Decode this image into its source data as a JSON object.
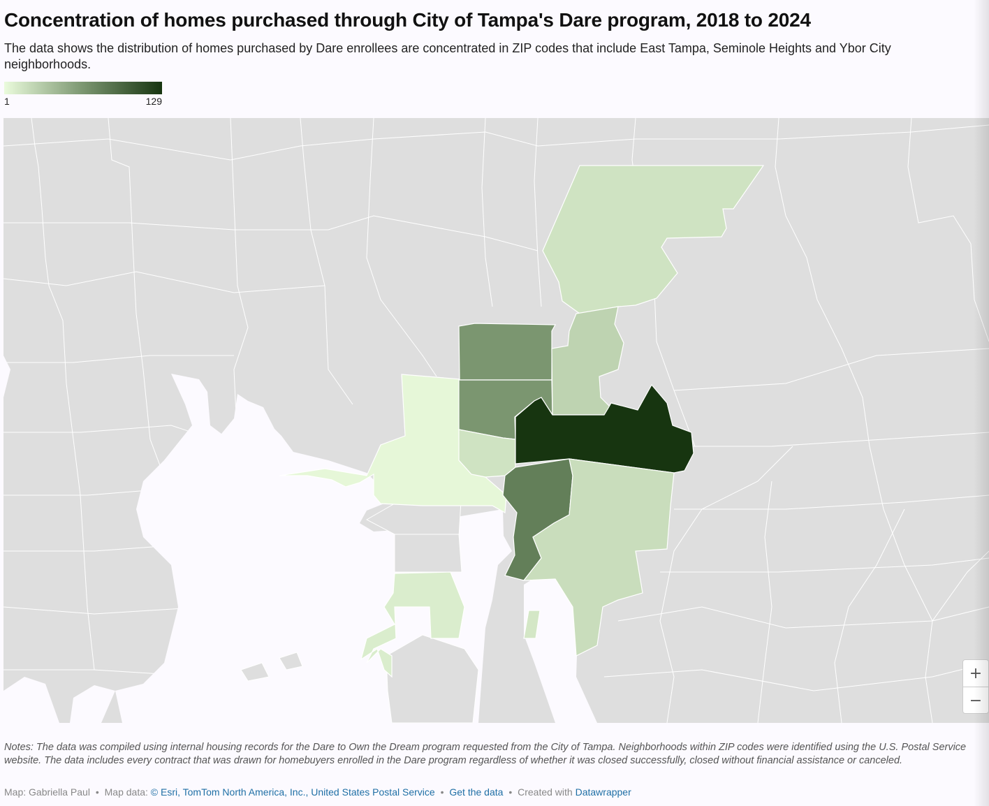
{
  "title": "Concentration of homes purchased through City of Tampa's Dare program, 2018 to 2024",
  "subtitle": "The data shows the distribution of homes purchased by Dare enrollees are concentrated in ZIP codes that include East Tampa, Seminole Heights and Ybor City neighborhoods.",
  "legend": {
    "min_label": "1",
    "max_label": "129",
    "min": 1,
    "max": 129
  },
  "colors": {
    "low": "#eafbdc",
    "mid": "#7b9670",
    "high": "#173510",
    "land_other": "#dedede",
    "water": "#fcfaff",
    "border": "#ffffff"
  },
  "zoom": {
    "in_label": "+",
    "out_label": "−"
  },
  "notes": "Notes: The data was compiled using internal housing records for the Dare to Own the Dream program requested from the City of Tampa. Neighborhoods within ZIP codes were identified using the U.S. Postal Service website. The data includes every contract that was drawn for homebuyers enrolled in the Dare program regardless of whether it was closed successfully, closed without financial assistance or canceled.",
  "footer": {
    "author": "Map: Gabriella Paul",
    "map_data_label": "Map data:",
    "map_data_link": "© Esri, TomTom North America, Inc., United States Postal Service",
    "get_data": "Get the data",
    "created_with": "Created with",
    "tool": "Datawrapper",
    "separator": "•"
  }
}
